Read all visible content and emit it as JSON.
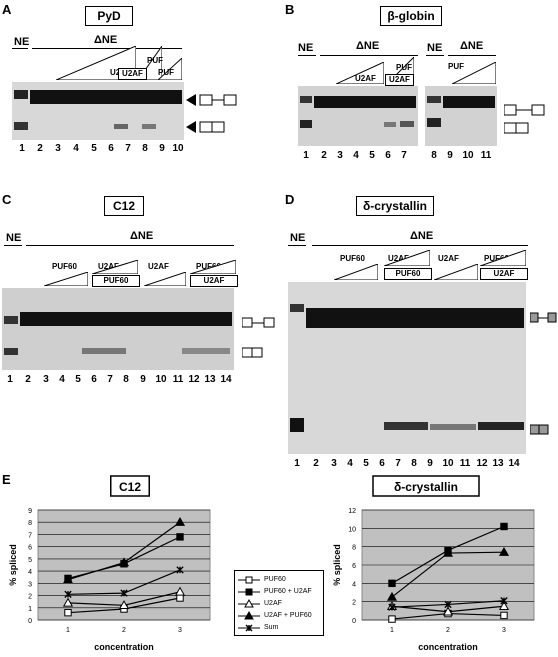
{
  "panels": {
    "A": {
      "letter": "A",
      "title": "PyD",
      "ne": "NE",
      "dne": "ΔNE",
      "labels": {
        "u2af": "U2AF",
        "puf_top": "PUF",
        "u2af_box": "U2AF",
        "puf": "PUF"
      },
      "lanes": [
        "1",
        "2",
        "3",
        "4",
        "5",
        "6",
        "7",
        "8",
        "9",
        "10"
      ]
    },
    "B": {
      "letter": "B",
      "title": "β-globin",
      "ne1": "NE",
      "dne1": "ΔNE",
      "ne2": "NE",
      "dne2": "ΔNE",
      "labels": {
        "u2af": "U2AF",
        "puf_top": "PUF",
        "u2af_box": "U2AF",
        "puf": "PUF"
      },
      "lanes_left": [
        "1",
        "2",
        "3",
        "4",
        "5",
        "6",
        "7"
      ],
      "lanes_right": [
        "8",
        "9",
        "10",
        "11"
      ]
    },
    "C": {
      "letter": "C",
      "title": "C12",
      "ne": "NE",
      "dne": "ΔNE",
      "labels": {
        "puf60": "PUF60",
        "u2af": "U2AF",
        "puf60_box": "PUF60",
        "u2af2": "U2AF",
        "puf60_2": "PUF60",
        "u2af_box": "U2AF"
      },
      "lanes": [
        "1",
        "2",
        "3",
        "4",
        "5",
        "6",
        "7",
        "8",
        "9",
        "10",
        "11",
        "12",
        "13",
        "14"
      ]
    },
    "D": {
      "letter": "D",
      "title": "δ-crystallin",
      "ne": "NE",
      "dne": "ΔNE",
      "labels": {
        "puf60": "PUF60",
        "u2af": "U2AF",
        "puf60_box": "PUF60",
        "u2af2": "U2AF",
        "puf60_2": "PUF60",
        "u2af_box": "U2AF"
      },
      "lanes": [
        "1",
        "2",
        "3",
        "4",
        "5",
        "6",
        "7",
        "8",
        "9",
        "10",
        "11",
        "12",
        "13",
        "14"
      ]
    },
    "E": {
      "letter": "E"
    }
  },
  "legend": [
    "PUF60",
    "PUF60 + U2AF",
    "U2AF",
    "U2AF + PUF60",
    "Sum"
  ],
  "chart_data": [
    {
      "type": "line",
      "title": "C12",
      "xlabel": "concentration",
      "ylabel": "% spliced",
      "x": [
        1,
        2,
        3
      ],
      "xlim": [
        1,
        3
      ],
      "ylim": [
        0,
        9
      ],
      "yticks": [
        0,
        1,
        2,
        3,
        4,
        5,
        6,
        7,
        8,
        9
      ],
      "grid": true,
      "series": [
        {
          "name": "PUF60",
          "marker": "open-square",
          "values": [
            0.6,
            0.9,
            1.8
          ]
        },
        {
          "name": "PUF60 + U2AF",
          "marker": "filled-square",
          "values": [
            3.4,
            4.6,
            6.8
          ]
        },
        {
          "name": "U2AF",
          "marker": "open-triangle",
          "values": [
            1.4,
            1.2,
            2.3
          ]
        },
        {
          "name": "U2AF + PUF60",
          "marker": "filled-triangle",
          "values": [
            3.3,
            4.7,
            8.0
          ]
        },
        {
          "name": "Sum",
          "marker": "star",
          "values": [
            2.1,
            2.2,
            4.1
          ]
        }
      ]
    },
    {
      "type": "line",
      "title": "δ-crystallin",
      "xlabel": "concentration",
      "ylabel": "% spliced",
      "x": [
        1,
        2,
        3
      ],
      "xlim": [
        1,
        3
      ],
      "ylim": [
        0,
        12
      ],
      "yticks": [
        0,
        2,
        4,
        6,
        8,
        10,
        12
      ],
      "grid": true,
      "series": [
        {
          "name": "PUF60",
          "marker": "open-square",
          "values": [
            0.1,
            0.7,
            0.5
          ]
        },
        {
          "name": "PUF60 + U2AF",
          "marker": "filled-square",
          "values": [
            4.0,
            7.6,
            10.2
          ]
        },
        {
          "name": "U2AF",
          "marker": "open-triangle",
          "values": [
            1.5,
            0.9,
            1.5
          ]
        },
        {
          "name": "U2AF + PUF60",
          "marker": "filled-triangle",
          "values": [
            2.5,
            7.3,
            7.4
          ]
        },
        {
          "name": "Sum",
          "marker": "star",
          "values": [
            1.4,
            1.7,
            2.1
          ]
        }
      ]
    }
  ]
}
